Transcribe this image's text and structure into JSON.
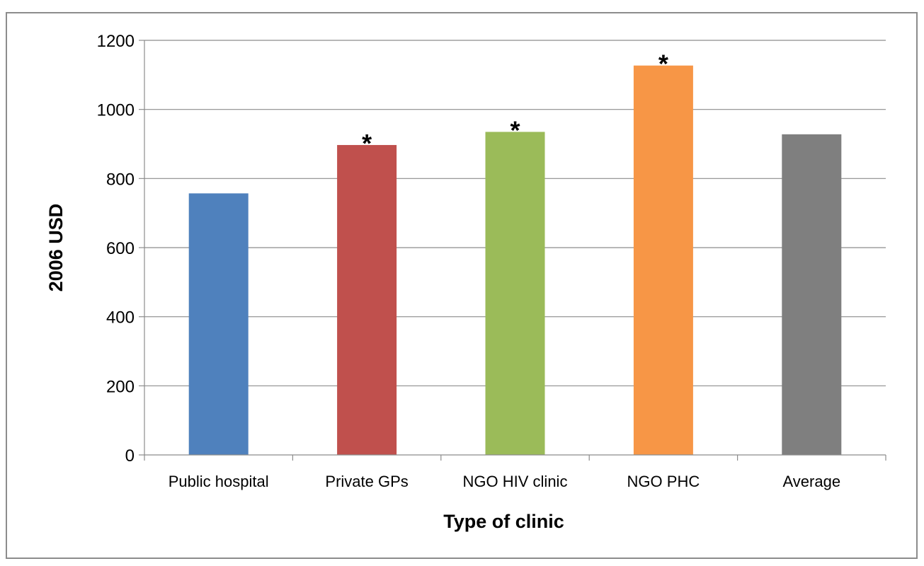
{
  "chart_data": {
    "type": "bar",
    "title": "",
    "xlabel": "Type of clinic",
    "ylabel": "2006 USD",
    "ylim": [
      0,
      1200
    ],
    "yticks": [
      0,
      200,
      400,
      600,
      800,
      1000,
      1200
    ],
    "categories": [
      "Public hospital",
      "Private GPs",
      "NGO HIV clinic",
      "NGO PHC",
      "Average"
    ],
    "values": [
      757,
      897,
      935,
      1127,
      928
    ],
    "significance_markers": [
      "",
      "*",
      "*",
      "*",
      ""
    ],
    "colors": [
      "#4F81BD",
      "#C0504D",
      "#9BBB59",
      "#F79646",
      "#7F7F7F"
    ],
    "grid": true,
    "legend": "none"
  }
}
